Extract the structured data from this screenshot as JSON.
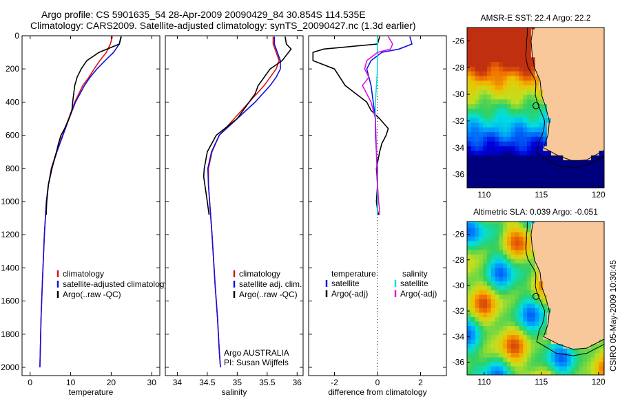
{
  "header": {
    "line1": "Argo profile: CS 5901635_54 28-Apr-2009 20090429_84 30.854S 114.535E",
    "line2": "Climatology: CARS2009. Satellite-adjusted climatology: synTS_20090427.nc (1.3d earlier)"
  },
  "stamp": "CSIRO 05-May-2009 10:30:45",
  "colors": {
    "clim": "#e01010",
    "sat": "#1010e0",
    "argo": "#000000",
    "sat_sal": "#00e0e0",
    "argo_sal": "#e010e0",
    "land": "#f8c89a"
  },
  "chart_data": [
    {
      "type": "line",
      "xlabel": "temperature",
      "ylabel": "",
      "xlim": [
        -2,
        32
      ],
      "ylim": [
        2050,
        0
      ],
      "xticks": [
        0,
        10,
        20,
        30
      ],
      "yticks": [
        0,
        200,
        400,
        600,
        800,
        1000,
        1200,
        1400,
        1600,
        1800,
        2000
      ],
      "legend": {
        "placement": "lower-right",
        "entries": [
          "climatology",
          "satellite-adjusted climatology",
          "Argo(..raw -QC)"
        ]
      },
      "series": [
        {
          "name": "climatology",
          "color": "clim",
          "depth": [
            5,
            50,
            100,
            150,
            200,
            250,
            300,
            400,
            500,
            600,
            700,
            800,
            900,
            1000,
            1200,
            1500,
            1700,
            1900,
            2000
          ],
          "values": [
            20.3,
            19.8,
            18.8,
            17.2,
            15.8,
            14.5,
            13.0,
            11.0,
            9.5,
            8.0,
            6.5,
            5.2,
            4.5,
            4.0,
            3.5,
            3.0,
            2.7,
            2.5,
            2.4
          ]
        },
        {
          "name": "satellite-adjusted climatology",
          "color": "sat",
          "depth": [
            5,
            50,
            100,
            150,
            200,
            250,
            300,
            400,
            500,
            600,
            700,
            800,
            900,
            1000,
            1200,
            1500,
            1700,
            1900,
            2000
          ],
          "values": [
            22.4,
            22.0,
            20.6,
            18.5,
            16.5,
            14.8,
            13.4,
            11.2,
            9.6,
            8.1,
            6.6,
            5.3,
            4.5,
            4.0,
            3.5,
            3.0,
            2.7,
            2.5,
            2.4
          ]
        },
        {
          "name": "Argo(..raw -QC)",
          "color": "argo",
          "depth": [
            5,
            50,
            100,
            150,
            200,
            250,
            300,
            400,
            450,
            500,
            560,
            600,
            650,
            700,
            800,
            900,
            1000,
            1050,
            1080
          ],
          "values": [
            22.5,
            22.0,
            17.0,
            14.0,
            12.6,
            11.6,
            11.0,
            10.5,
            10.3,
            9.6,
            8.5,
            7.6,
            7.0,
            6.5,
            5.4,
            4.5,
            4.1,
            4.0,
            4.0
          ]
        }
      ]
    },
    {
      "type": "line",
      "xlabel": "salinity",
      "ylabel": "",
      "xlim": [
        33.8,
        36.1
      ],
      "ylim": [
        2050,
        0
      ],
      "xticks": [
        34,
        34.5,
        35,
        35.5,
        36
      ],
      "legend": {
        "placement": "lower-right",
        "entries": [
          "climatology",
          "satellite adj. clim.",
          "Argo(..raw -QC)"
        ]
      },
      "annotation": [
        "Argo AUSTRALIA",
        "PI: Susan Wijffels"
      ],
      "series": [
        {
          "name": "climatology",
          "color": "clim",
          "depth": [
            5,
            50,
            100,
            150,
            200,
            250,
            300,
            400,
            500,
            600,
            700,
            800,
            900,
            1000,
            1200,
            1500,
            1700,
            1900,
            2000
          ],
          "values": [
            35.6,
            35.6,
            35.65,
            35.7,
            35.65,
            35.55,
            35.45,
            35.2,
            34.95,
            34.7,
            34.58,
            34.52,
            34.52,
            34.54,
            34.58,
            34.63,
            34.67,
            34.7,
            34.72
          ]
        },
        {
          "name": "satellite adj. clim.",
          "color": "sat",
          "depth": [
            5,
            50,
            100,
            150,
            200,
            250,
            300,
            400,
            500,
            600,
            700,
            800,
            900,
            1000,
            1200,
            1500,
            1700,
            1900,
            2000
          ],
          "values": [
            35.62,
            35.62,
            35.67,
            35.72,
            35.72,
            35.65,
            35.55,
            35.3,
            35.0,
            34.7,
            34.57,
            34.51,
            34.52,
            34.54,
            34.58,
            34.63,
            34.67,
            34.7,
            34.72
          ]
        },
        {
          "name": "Argo(..raw -QC)",
          "color": "argo",
          "depth": [
            5,
            50,
            80,
            150,
            200,
            300,
            350,
            450,
            500,
            600,
            700,
            800,
            850,
            900,
            1000,
            1080
          ],
          "values": [
            35.8,
            35.82,
            35.9,
            35.75,
            35.55,
            35.35,
            35.3,
            35.1,
            35.0,
            34.65,
            34.5,
            34.45,
            34.44,
            34.46,
            34.5,
            34.53
          ]
        }
      ]
    },
    {
      "type": "line",
      "xlabel": "difference from climatology",
      "ylabel": "",
      "xlim": [
        -3.2,
        3.2
      ],
      "ylim": [
        2050,
        0
      ],
      "xticks": [
        -2,
        0,
        2
      ],
      "legend": {
        "placement": "lower-center",
        "temperature_title": "temperature",
        "salinity_title": "salinity",
        "entries": [
          "satellite",
          "Argo(-adj)",
          "satellite",
          "Argo(-adj)"
        ]
      },
      "series": [
        {
          "name": "temperature satellite",
          "color": "sat",
          "depth": [
            5,
            50,
            80,
            100,
            150,
            200,
            300,
            400,
            500,
            600,
            700,
            800,
            900,
            1000,
            1050,
            1080
          ],
          "values": [
            1.5,
            1.6,
            1.0,
            0.2,
            -0.3,
            -0.5,
            -0.3,
            -0.2,
            -0.1,
            -0.1,
            -0.05,
            0.0,
            0.0,
            0.0,
            0.0,
            0.0
          ]
        },
        {
          "name": "temperature Argo(-adj)",
          "color": "argo",
          "depth": [
            5,
            50,
            80,
            100,
            150,
            200,
            300,
            400,
            450,
            500,
            560,
            600,
            650,
            700,
            800,
            900,
            1000,
            1050,
            1080
          ],
          "values": [
            0.1,
            0.0,
            -2.5,
            -3.0,
            -3.0,
            -2.0,
            -1.5,
            -0.5,
            -0.3,
            0.1,
            0.5,
            0.4,
            0.2,
            0.1,
            -0.05,
            0.0,
            -0.05,
            0.0,
            0.05
          ]
        },
        {
          "name": "salinity satellite",
          "color": "sat_sal",
          "depth": [
            5,
            100,
            200,
            300,
            400,
            500,
            700,
            900,
            1000,
            1080
          ],
          "values": [
            0.0,
            0.0,
            0.0,
            -0.05,
            -0.1,
            -0.1,
            -0.05,
            0.0,
            0.0,
            0.0
          ]
        },
        {
          "name": "salinity Argo(-adj)",
          "color": "argo_sal",
          "depth": [
            5,
            50,
            80,
            100,
            150,
            200,
            250,
            300,
            350,
            400,
            450,
            500,
            700,
            900,
            1000,
            1050,
            1080
          ],
          "values": [
            0.5,
            0.7,
            0.6,
            0.0,
            -0.5,
            -0.6,
            -0.4,
            -0.7,
            -0.5,
            -0.3,
            -0.2,
            -0.1,
            -0.05,
            0.0,
            0.05,
            0.1,
            0.1
          ]
        }
      ]
    },
    {
      "type": "heatmap",
      "title": "AMSR-E SST: 22.4 Argo: 22.2",
      "xlim": [
        108.5,
        120.5
      ],
      "ylim": [
        -37,
        -25
      ],
      "xticks": [
        110,
        115,
        120
      ],
      "yticks": [
        -26,
        -28,
        -30,
        -32,
        -34,
        -36
      ],
      "marker": {
        "lon": 114.535,
        "lat": -30.854
      }
    },
    {
      "type": "heatmap",
      "title": "Altimetric SLA: 0.039 Argo: -0.051",
      "xlim": [
        108.5,
        120.5
      ],
      "ylim": [
        -37,
        -25
      ],
      "xticks": [
        110,
        115,
        120
      ],
      "yticks": [
        -26,
        -28,
        -30,
        -32,
        -34,
        -36
      ],
      "marker": {
        "lon": 114.535,
        "lat": -30.854
      }
    }
  ]
}
